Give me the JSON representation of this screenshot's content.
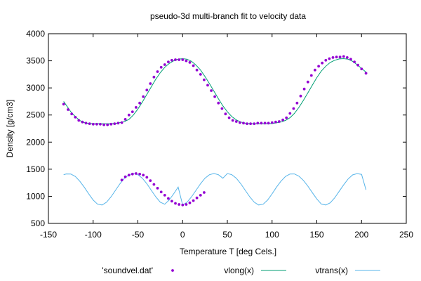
{
  "chart_data": {
    "type": "scatter",
    "title": "pseudo-3d multi-branch fit to velocity data",
    "xlabel": "Temperature T  [deg Cels.]",
    "ylabel": "Density [g/cm3]",
    "xlim": [
      -150,
      250
    ],
    "ylim": [
      500,
      4000
    ],
    "xticks": [
      -150,
      -100,
      -50,
      0,
      50,
      100,
      150,
      200,
      250
    ],
    "yticks": [
      500,
      1000,
      1500,
      2000,
      2500,
      3000,
      3500,
      4000
    ],
    "grid": false,
    "legend_position": "bottom",
    "colors": {
      "points": "#9400d3",
      "vlong": "#009e73",
      "vtrans": "#56b4e9",
      "axis": "#000000"
    },
    "series": [
      {
        "name": "'soundvel.dat'",
        "kind": "points",
        "x": [
          -133,
          -128,
          -124,
          -120,
          -116,
          -112,
          -108,
          -104,
          -100,
          -96,
          -92,
          -88,
          -84,
          -80,
          -76,
          -72,
          -68,
          -64,
          -60,
          -56,
          -52,
          -48,
          -44,
          -40,
          -36,
          -32,
          -28,
          -24,
          -20,
          -16,
          -12,
          -8,
          -4,
          0,
          4,
          8,
          12,
          16,
          20,
          24,
          28,
          32,
          36,
          40,
          44,
          48,
          52,
          56,
          60,
          64,
          68,
          72,
          76,
          80,
          84,
          88,
          92,
          96,
          100,
          104,
          108,
          112,
          116,
          120,
          124,
          128,
          132,
          136,
          140,
          144,
          148,
          152,
          156,
          160,
          164,
          168,
          172,
          176,
          180,
          184,
          188,
          192,
          196,
          200,
          205
        ],
        "y": [
          2700,
          2600,
          2520,
          2460,
          2400,
          2370,
          2350,
          2340,
          2330,
          2330,
          2330,
          2320,
          2320,
          2330,
          2340,
          2350,
          2360,
          2420,
          2500,
          2560,
          2640,
          2720,
          2840,
          2960,
          3080,
          3200,
          3300,
          3380,
          3430,
          3480,
          3510,
          3520,
          3520,
          3520,
          3500,
          3470,
          3410,
          3330,
          3250,
          3150,
          3050,
          2950,
          2840,
          2720,
          2620,
          2520,
          2450,
          2400,
          2380,
          2360,
          2350,
          2340,
          2340,
          2340,
          2350,
          2350,
          2350,
          2350,
          2360,
          2370,
          2380,
          2410,
          2450,
          2530,
          2620,
          2720,
          2850,
          2980,
          3110,
          3230,
          3330,
          3400,
          3460,
          3510,
          3540,
          3560,
          3570,
          3570,
          3580,
          3560,
          3530,
          3480,
          3420,
          3350,
          3270
        ]
      },
      {
        "name": "'soundvel.dat'",
        "kind": "points",
        "x": [
          -68,
          -64,
          -60,
          -56,
          -52,
          -48,
          -44,
          -40,
          -36,
          -32,
          -28,
          -24,
          -20,
          -16,
          -12,
          -8,
          -4,
          0,
          4,
          8,
          12,
          16,
          20,
          24
        ],
        "y": [
          1300,
          1360,
          1390,
          1410,
          1420,
          1410,
          1390,
          1350,
          1290,
          1220,
          1150,
          1080,
          1020,
          960,
          910,
          870,
          850,
          840,
          850,
          880,
          920,
          970,
          1020,
          1070
        ]
      },
      {
        "name": "vlong(x)",
        "kind": "line",
        "x": [
          -133,
          -130,
          -125,
          -120,
          -115,
          -110,
          -105,
          -100,
          -95,
          -90,
          -85,
          -80,
          -75,
          -70,
          -65,
          -60,
          -55,
          -50,
          -45,
          -40,
          -35,
          -30,
          -25,
          -20,
          -15,
          -10,
          -5,
          0,
          5,
          10,
          15,
          20,
          25,
          30,
          35,
          40,
          45,
          50,
          55,
          60,
          65,
          70,
          75,
          80,
          85,
          90,
          95,
          100,
          105,
          110,
          115,
          120,
          125,
          130,
          135,
          140,
          145,
          150,
          155,
          160,
          165,
          170,
          175,
          180,
          185,
          190,
          195,
          200,
          205
        ],
        "y": [
          2750,
          2680,
          2560,
          2470,
          2400,
          2360,
          2345,
          2340,
          2340,
          2340,
          2340,
          2340,
          2345,
          2360,
          2380,
          2420,
          2500,
          2610,
          2740,
          2880,
          3020,
          3160,
          3280,
          3380,
          3450,
          3500,
          3530,
          3540,
          3530,
          3490,
          3420,
          3330,
          3210,
          3080,
          2940,
          2800,
          2670,
          2560,
          2470,
          2410,
          2370,
          2350,
          2340,
          2340,
          2340,
          2340,
          2340,
          2345,
          2355,
          2370,
          2400,
          2450,
          2530,
          2640,
          2770,
          2910,
          3050,
          3190,
          3310,
          3400,
          3470,
          3510,
          3535,
          3540,
          3530,
          3490,
          3430,
          3360,
          3290
        ]
      },
      {
        "name": "vtrans(x)",
        "kind": "line",
        "x": [
          -133,
          -130,
          -125,
          -120,
          -115,
          -110,
          -105,
          -100,
          -95,
          -90,
          -85,
          -80,
          -75,
          -70,
          -65,
          -60,
          -55,
          -50,
          -45,
          -40,
          -35,
          -30,
          -25,
          -20,
          -15,
          -10,
          -5,
          0,
          5,
          10,
          15,
          20,
          25,
          30,
          35,
          40,
          45,
          50,
          55,
          60,
          65,
          70,
          75,
          80,
          85,
          90,
          95,
          100,
          105,
          110,
          115,
          120,
          125,
          130,
          135,
          140,
          145,
          150,
          155,
          160,
          165,
          170,
          175,
          180,
          185,
          190,
          195,
          200,
          205
        ],
        "y": [
          1400,
          1413,
          1411,
          1366,
          1281,
          1170,
          1046,
          931,
          854,
          840,
          891,
          991,
          1111,
          1232,
          1333,
          1398,
          1420,
          1398,
          1333,
          1232,
          1111,
          991,
          891,
          854,
          931,
          1046,
          1170,
          840,
          891,
          991,
          1111,
          1232,
          1333,
          1398,
          1420,
          1398,
          1333,
          1420,
          1398,
          1333,
          1232,
          1111,
          991,
          891,
          840,
          854,
          931,
          1046,
          1170,
          1281,
          1366,
          1411,
          1413,
          1371,
          1293,
          1187,
          1068,
          951,
          858,
          840,
          880,
          972,
          1093,
          1212,
          1319,
          1394,
          1419,
          1405,
          1120
        ]
      }
    ]
  }
}
